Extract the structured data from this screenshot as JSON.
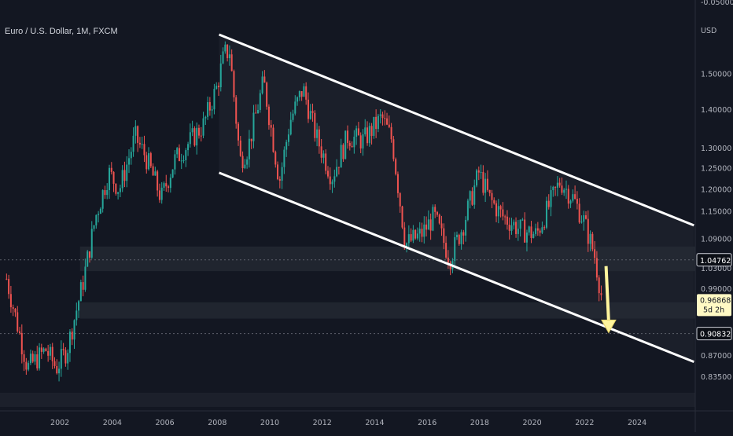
{
  "header": {
    "title": "Euro / U.S. Dollar, 1M, FXCM"
  },
  "colors": {
    "background": "#131722",
    "grid": "#1e222d",
    "up_candle": "#26a69a",
    "down_candle": "#ef5350",
    "channel_line": "#ffffff",
    "arrow": "#fff59d",
    "price_tag_bg": "#fff9c4"
  },
  "icons": {
    "forecast": "down-arrow-icon"
  },
  "chart_data": {
    "type": "candlestick",
    "title": "Euro / U.S. Dollar, 1M, FXCM",
    "y_unit_label": "USD",
    "y_scale": "log",
    "ylim": [
      0.81,
      1.66
    ],
    "xlim": [
      1999.75,
      2026.25
    ],
    "y_ticks": [
      "1.50000",
      "1.40000",
      "1.30000",
      "1.25000",
      "1.20000",
      "1.15000",
      "1.09000",
      "1.03000",
      "0.99000",
      "0.87000",
      "0.83500"
    ],
    "y_tick_values": [
      1.5,
      1.4,
      1.3,
      1.25,
      1.2,
      1.15,
      1.09,
      1.03,
      0.99,
      0.87,
      0.835
    ],
    "top_partial_tick": "-0.05000",
    "x_ticks": [
      "2002",
      "2004",
      "2006",
      "2008",
      "2010",
      "2012",
      "2014",
      "2016",
      "2018",
      "2020",
      "2022",
      "2024"
    ],
    "x_tick_values": [
      2002,
      2004,
      2006,
      2008,
      2010,
      2012,
      2014,
      2016,
      2018,
      2020,
      2022,
      2024
    ],
    "path_points": [
      [
        2000.0,
        1.01
      ],
      [
        2000.8,
        0.85
      ],
      [
        2001.5,
        0.88
      ],
      [
        2001.9,
        0.85
      ],
      [
        2002.3,
        0.88
      ],
      [
        2002.9,
        1.0
      ],
      [
        2003.4,
        1.14
      ],
      [
        2003.9,
        1.24
      ],
      [
        2004.3,
        1.2
      ],
      [
        2004.9,
        1.33
      ],
      [
        2005.3,
        1.28
      ],
      [
        2005.9,
        1.18
      ],
      [
        2006.4,
        1.27
      ],
      [
        2006.9,
        1.31
      ],
      [
        2007.5,
        1.36
      ],
      [
        2008.0,
        1.46
      ],
      [
        2008.3,
        1.56
      ],
      [
        2008.5,
        1.57
      ],
      [
        2008.9,
        1.27
      ],
      [
        2009.2,
        1.3
      ],
      [
        2009.8,
        1.48
      ],
      [
        2010.4,
        1.22
      ],
      [
        2010.8,
        1.37
      ],
      [
        2011.3,
        1.46
      ],
      [
        2011.8,
        1.33
      ],
      [
        2012.4,
        1.23
      ],
      [
        2013.0,
        1.33
      ],
      [
        2013.6,
        1.32
      ],
      [
        2014.3,
        1.38
      ],
      [
        2014.7,
        1.32
      ],
      [
        2015.2,
        1.08
      ],
      [
        2015.8,
        1.1
      ],
      [
        2016.3,
        1.14
      ],
      [
        2016.9,
        1.05
      ],
      [
        2017.4,
        1.12
      ],
      [
        2018.0,
        1.24
      ],
      [
        2018.4,
        1.18
      ],
      [
        2018.9,
        1.14
      ],
      [
        2019.6,
        1.11
      ],
      [
        2020.2,
        1.1
      ],
      [
        2020.8,
        1.18
      ],
      [
        2021.1,
        1.22
      ],
      [
        2021.6,
        1.18
      ],
      [
        2022.0,
        1.13
      ],
      [
        2022.4,
        1.06
      ],
      [
        2022.7,
        0.97
      ]
    ],
    "channel": {
      "upper": [
        [
          2008.1,
          1.62
        ],
        [
          2026.2,
          1.12
        ]
      ],
      "lower": [
        [
          2008.1,
          1.24
        ],
        [
          2026.2,
          0.86
        ]
      ]
    },
    "forecast_arrow": {
      "from": [
        2022.85,
        1.035
      ],
      "to": [
        2022.95,
        0.91
      ]
    },
    "dashed_levels": [
      1.04762,
      0.90832
    ],
    "support_zones": [
      [
        1.025,
        1.075
      ],
      [
        0.935,
        0.965
      ]
    ],
    "price_tags": [
      {
        "label": "1.04762",
        "value": 1.04762,
        "style": "outline"
      },
      {
        "label": "0.96868",
        "sub": "5d 2h",
        "value": 0.96868,
        "style": "current"
      },
      {
        "label": "0.90832",
        "value": 0.90832,
        "style": "outline"
      }
    ],
    "grid": true
  }
}
